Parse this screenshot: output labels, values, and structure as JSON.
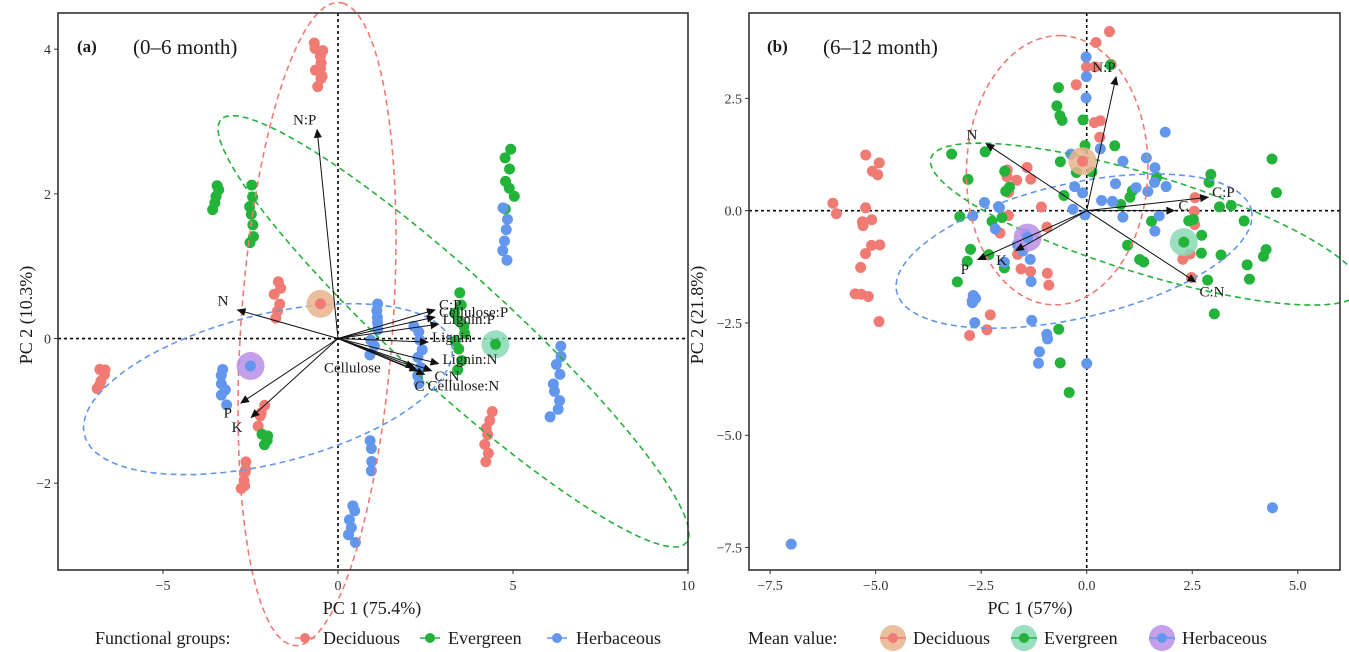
{
  "legend": {
    "groups_title": "Functional groups:",
    "means_title": "Mean value:",
    "items": [
      "Deciduous",
      "Evergreen",
      "Herbaceous"
    ]
  },
  "colors": {
    "Deciduous": "#f07b74",
    "Evergreen": "#23b33a",
    "Herbaceous": "#6397ee",
    "Deciduous_mean": "#e8b48c",
    "Evergreen_mean": "#8ad9b6",
    "Herbaceous_mean": "#bb8fe6"
  },
  "chart_data": [
    {
      "type": "scatter",
      "panel": "(a)",
      "subtitle": "(0–6 month)",
      "xlabel": "PC 1 (75.4%)",
      "ylabel": "PC 2 (10.3%)",
      "xlim": [
        -8,
        10
      ],
      "ylim": [
        -3.2,
        4.5
      ],
      "xticks": [
        -5,
        0,
        5,
        10
      ],
      "xtick_labels": [
        "−5",
        "0",
        "5",
        "10"
      ],
      "yticks": [
        -2,
        0,
        2,
        4
      ],
      "ytick_labels": [
        "−2",
        "0",
        "2",
        "4"
      ],
      "series": [
        {
          "name": "Deciduous",
          "clusters": [
            {
              "x": -0.6,
              "y0": 3.5,
              "y1": 4.1,
              "n": 10,
              "w": 0.4
            },
            {
              "x": -6.8,
              "y0": -0.7,
              "y1": -0.4,
              "n": 6,
              "w": 0.3
            },
            {
              "x": -1.7,
              "y0": 0.3,
              "y1": 0.8,
              "n": 6,
              "w": 0.25
            },
            {
              "x": -2.7,
              "y0": -2.1,
              "y1": -1.7,
              "n": 6,
              "w": 0.2
            },
            {
              "x": -2.2,
              "y0": -1.2,
              "y1": -0.9,
              "n": 4,
              "w": 0.25
            },
            {
              "x": 4.3,
              "y0": -1.7,
              "y1": -1.0,
              "n": 7,
              "w": 0.3
            }
          ]
        },
        {
          "name": "Evergreen",
          "clusters": [
            {
              "x": -3.5,
              "y0": 1.8,
              "y1": 2.1,
              "n": 5,
              "w": 0.2
            },
            {
              "x": -2.5,
              "y0": 1.3,
              "y1": 2.1,
              "n": 7,
              "w": 0.2
            },
            {
              "x": 4.9,
              "y0": 1.8,
              "y1": 2.6,
              "n": 7,
              "w": 0.3
            },
            {
              "x": -2.1,
              "y0": -1.5,
              "y1": -1.3,
              "n": 4,
              "w": 0.2
            },
            {
              "x": 3.5,
              "y0": -0.4,
              "y1": 0.6,
              "n": 10,
              "w": 0.35
            }
          ]
        },
        {
          "name": "Herbaceous",
          "clusters": [
            {
              "x": 4.8,
              "y0": 1.1,
              "y1": 1.8,
              "n": 6,
              "w": 0.2
            },
            {
              "x": 6.2,
              "y0": -1.1,
              "y1": -0.1,
              "n": 9,
              "w": 0.35
            },
            {
              "x": 0.9,
              "y0": -1.8,
              "y1": -1.4,
              "n": 4,
              "w": 0.2
            },
            {
              "x": 0.4,
              "y0": -2.8,
              "y1": -2.3,
              "n": 6,
              "w": 0.2
            },
            {
              "x": -3.3,
              "y0": -0.9,
              "y1": -0.4,
              "n": 6,
              "w": 0.25
            },
            {
              "x": 1.0,
              "y0": -0.2,
              "y1": 0.5,
              "n": 8,
              "w": 0.3
            },
            {
              "x": 2.3,
              "y0": -0.6,
              "y1": 0.2,
              "n": 8,
              "w": 0.3
            }
          ]
        }
      ],
      "means": [
        {
          "name": "Deciduous",
          "x": -0.5,
          "y": 0.48
        },
        {
          "name": "Evergreen",
          "x": 4.5,
          "y": -0.08
        },
        {
          "name": "Herbaceous",
          "x": -2.5,
          "y": -0.38
        }
      ],
      "ellipses": [
        {
          "name": "Deciduous",
          "cx": -0.6,
          "cy": 0.2,
          "rx": 4.5,
          "ry": 2.15,
          "angle": 80
        },
        {
          "name": "Evergreen",
          "cx": 3.3,
          "cy": 0.1,
          "rx": 7.3,
          "ry": 0.95,
          "angle": -23
        },
        {
          "name": "Herbaceous",
          "cx": -2.0,
          "cy": -0.7,
          "rx": 5.3,
          "ry": 1.05,
          "angle": 6
        }
      ],
      "vectors": [
        {
          "label": "N:P",
          "x": -0.6,
          "y": 2.9
        },
        {
          "label": "N",
          "x": -2.9,
          "y": 0.4
        },
        {
          "label": "P",
          "x": -2.8,
          "y": -0.9
        },
        {
          "label": "K",
          "x": -2.5,
          "y": -1.1
        },
        {
          "label": "C:P",
          "x": 2.8,
          "y": 0.4
        },
        {
          "label": "Cellulose:P",
          "x": 2.8,
          "y": 0.3
        },
        {
          "label": "Lignin:P",
          "x": 2.9,
          "y": 0.2
        },
        {
          "label": "Lignin",
          "x": 2.6,
          "y": -0.05
        },
        {
          "label": "Lignin:N",
          "x": 2.9,
          "y": -0.35
        },
        {
          "label": "C:N",
          "x": 2.7,
          "y": -0.45
        },
        {
          "label": "Cellulose:N",
          "x": 2.5,
          "y": -0.5
        },
        {
          "label": "C",
          "x": 2.3,
          "y": -0.45
        },
        {
          "label": "Cellulose",
          "x": 2.2,
          "y": -0.4
        }
      ]
    },
    {
      "type": "scatter",
      "panel": "(b)",
      "subtitle": "(6–12 month)",
      "xlabel": "PC 1 (57%)",
      "ylabel": "PC 2 (21.8%)",
      "xlim": [
        -8,
        6.0
      ],
      "ylim": [
        -8.0,
        4.4
      ],
      "xticks": [
        -7.5,
        -5,
        -2.5,
        0,
        2.5,
        5
      ],
      "xtick_labels": [
        "−7.5",
        "−5.0",
        "−2.5",
        "0.0",
        "2.5",
        "5.0"
      ],
      "yticks": [
        -7.5,
        -5,
        -2.5,
        0,
        2.5
      ],
      "ytick_labels": [
        "−7.5",
        "−5.0",
        "−2.5",
        "0.0",
        "2.5"
      ],
      "series": [
        {
          "name": "Deciduous",
          "clusters": [
            {
              "x": 0.2,
              "y0": 1.8,
              "y1": 4.0,
              "n": 9,
              "w": 0.9
            },
            {
              "x": -5.5,
              "y0": -2.2,
              "y1": 1.1,
              "n": 18,
              "w": 1.2
            },
            {
              "x": -1.5,
              "y0": -1.8,
              "y1": 1.2,
              "n": 16,
              "w": 1.3
            },
            {
              "x": 2.5,
              "y0": -1.5,
              "y1": 0.0,
              "n": 6,
              "w": 0.8
            },
            {
              "x": -2.5,
              "y0": -2.9,
              "y1": -2.0,
              "n": 4,
              "w": 0.6
            }
          ]
        },
        {
          "name": "Evergreen",
          "clusters": [
            {
              "x": 0.0,
              "y0": 0.5,
              "y1": 3.0,
              "n": 12,
              "w": 1.6
            },
            {
              "x": 3.5,
              "y0": -2.0,
              "y1": 1.0,
              "n": 18,
              "w": 2.2
            },
            {
              "x": -2.5,
              "y0": -1.5,
              "y1": 1.3,
              "n": 14,
              "w": 1.4
            },
            {
              "x": -0.5,
              "y0": -4.1,
              "y1": -2.6,
              "n": 3,
              "w": 0.4
            },
            {
              "x": 1.2,
              "y0": -1.0,
              "y1": 0.5,
              "n": 8,
              "w": 1.0
            }
          ]
        },
        {
          "name": "Herbaceous",
          "clusters": [
            {
              "x": 1.0,
              "y0": -0.3,
              "y1": 1.5,
              "n": 20,
              "w": 3.0
            },
            {
              "x": -2.0,
              "y0": -2.5,
              "y1": 0.3,
              "n": 16,
              "w": 1.5
            },
            {
              "x": 0.0,
              "y0": 2.5,
              "y1": 3.4,
              "n": 3,
              "w": 0.3
            },
            {
              "x": -1.0,
              "y0": -3.5,
              "y1": -2.7,
              "n": 4,
              "w": 0.8
            },
            {
              "x": 4.4,
              "y0": -6.6,
              "y1": -6.6,
              "n": 1,
              "w": 0.0
            },
            {
              "x": -7.0,
              "y0": -7.4,
              "y1": -7.4,
              "n": 1,
              "w": 0.0
            },
            {
              "x": 0.0,
              "y0": -3.5,
              "y1": -3.4,
              "n": 1,
              "w": 0.0
            }
          ]
        }
      ],
      "means": [
        {
          "name": "Deciduous",
          "x": -0.1,
          "y": 1.1
        },
        {
          "name": "Evergreen",
          "x": 2.3,
          "y": -0.7
        },
        {
          "name": "Herbaceous",
          "x": -1.4,
          "y": -0.6
        }
      ],
      "ellipses": [
        {
          "name": "Deciduous",
          "cx": -0.7,
          "cy": 0.9,
          "rx": 3.0,
          "ry": 2.15,
          "angle": 88
        },
        {
          "name": "Evergreen",
          "cx": 1.4,
          "cy": -0.3,
          "rx": 5.3,
          "ry": 1.1,
          "angle": -16
        },
        {
          "name": "Herbaceous",
          "cx": -0.3,
          "cy": -0.9,
          "rx": 4.3,
          "ry": 1.5,
          "angle": 12
        }
      ],
      "vectors": [
        {
          "label": "N:P",
          "x": 0.7,
          "y": 3.0
        },
        {
          "label": "N",
          "x": -2.4,
          "y": 1.5
        },
        {
          "label": "P",
          "x": -2.6,
          "y": -1.1
        },
        {
          "label": "K",
          "x": -1.7,
          "y": -0.9
        },
        {
          "label": "C:P",
          "x": 2.9,
          "y": 0.3
        },
        {
          "label": "C",
          "x": 2.1,
          "y": 0.0
        },
        {
          "label": "C:N",
          "x": 2.6,
          "y": -1.6
        }
      ]
    }
  ]
}
